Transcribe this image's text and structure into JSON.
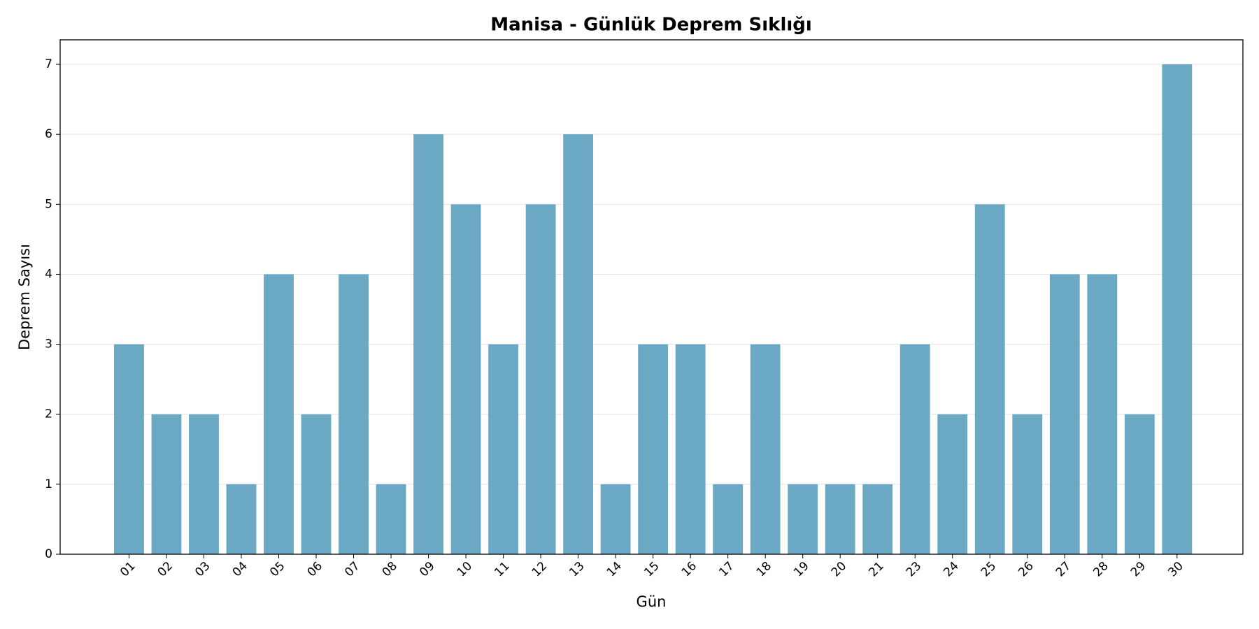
{
  "chart_data": {
    "type": "bar",
    "title": "Manisa - Günlük Deprem Sıklığı",
    "x_label": "Gün",
    "y_label": "Deprem Sayısı",
    "categories": [
      "01",
      "02",
      "03",
      "04",
      "05",
      "06",
      "07",
      "08",
      "09",
      "10",
      "11",
      "12",
      "13",
      "14",
      "15",
      "16",
      "17",
      "18",
      "19",
      "20",
      "21",
      "23",
      "24",
      "25",
      "26",
      "27",
      "28",
      "29",
      "30"
    ],
    "values": [
      3,
      2,
      2,
      1,
      4,
      2,
      4,
      1,
      6,
      5,
      3,
      5,
      6,
      1,
      3,
      3,
      1,
      3,
      1,
      1,
      1,
      3,
      2,
      5,
      2,
      4,
      4,
      2,
      7
    ],
    "color": "#6aa8c4",
    "ylim": [
      0,
      7.35
    ],
    "yticks": [
      0,
      1,
      2,
      3,
      4,
      5,
      6,
      7
    ],
    "grid": true
  }
}
